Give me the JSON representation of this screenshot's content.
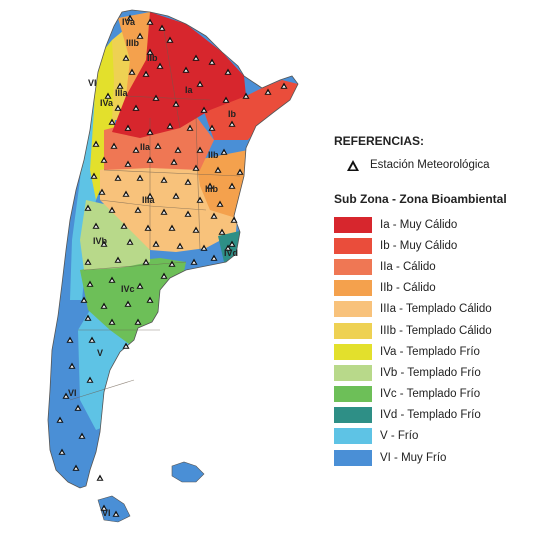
{
  "legend": {
    "heading": "REFERENCIAS:",
    "station_label": "Estación Meteorológica",
    "zones_title": "Sub Zona - Zona Bioambiental",
    "items": [
      {
        "code": "Ia",
        "label": "Ia - Muy Cálido",
        "color": "#d7262d"
      },
      {
        "code": "Ib",
        "label": "Ib - Muy Cálido",
        "color": "#ea4d3b"
      },
      {
        "code": "IIa",
        "label": "IIa - Cálido",
        "color": "#ef7754"
      },
      {
        "code": "IIb",
        "label": "IIb - Cálido",
        "color": "#f4a14d"
      },
      {
        "code": "IIIa",
        "label": "IIIa - Templado Cálido",
        "color": "#f8c27b"
      },
      {
        "code": "IIIb",
        "label": "IIIb - Templado Cálido",
        "color": "#eed153"
      },
      {
        "code": "IVa",
        "label": "IVa - Templado Frío",
        "color": "#e3e02c"
      },
      {
        "code": "IVb",
        "label": "IVb - Templado Frío",
        "color": "#b8d98a"
      },
      {
        "code": "IVc",
        "label": "IVc - Templado Frío",
        "color": "#6dbf58"
      },
      {
        "code": "IVd",
        "label": "IVd - Templado Frío",
        "color": "#2e8f86"
      },
      {
        "code": "V",
        "label": "V - Frío",
        "color": "#5ec3e5"
      },
      {
        "code": "VI",
        "label": "VI - Muy Frío",
        "color": "#4a8fd6"
      }
    ]
  },
  "map": {
    "zone_labels": [
      "IVa",
      "IIIb",
      "IIb",
      "VI",
      "IVa",
      "IIIa",
      "Ia",
      "Ib",
      "IIa",
      "IIb",
      "IIIb",
      "IIIa",
      "IVb",
      "IVd",
      "IVc",
      "V",
      "VI",
      "VI"
    ],
    "icons": {
      "station": "triangle-station-icon"
    }
  }
}
